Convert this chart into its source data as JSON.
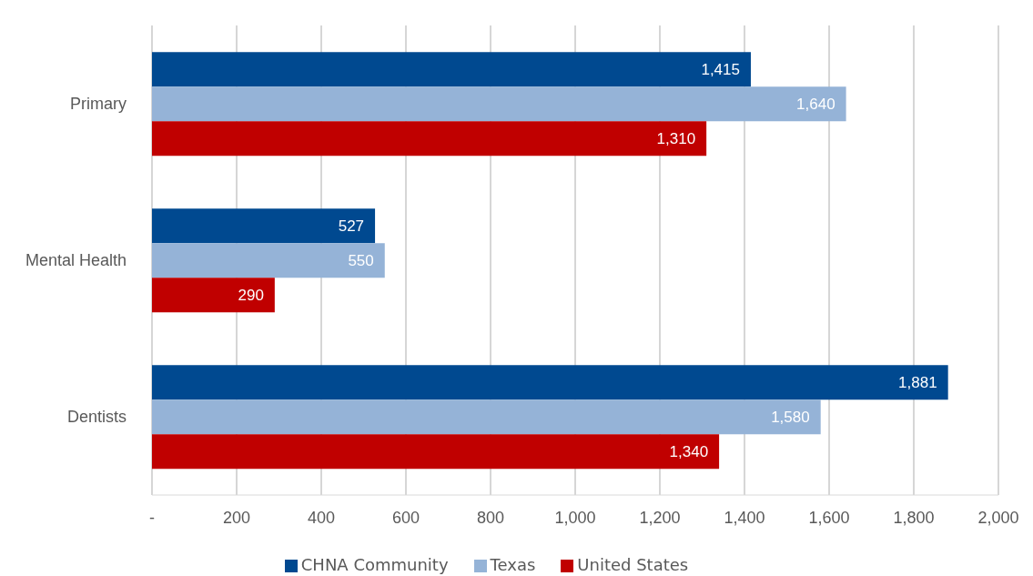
{
  "chart_data": {
    "type": "bar",
    "orientation": "horizontal",
    "categories": [
      "Primary",
      "Mental Health",
      "Dentists"
    ],
    "series": [
      {
        "name": "CHNA Community",
        "color": "#004990",
        "values": [
          1415,
          527,
          1881
        ],
        "value_labels": [
          "1,415",
          "527",
          "1,881"
        ]
      },
      {
        "name": "Texas",
        "color": "#95b3d7",
        "values": [
          1640,
          550,
          1580
        ],
        "value_labels": [
          "1,640",
          "550",
          "1,580"
        ]
      },
      {
        "name": "United States",
        "color": "#c00000",
        "values": [
          1310,
          290,
          1340
        ],
        "value_labels": [
          "1,310",
          "290",
          "1,340"
        ]
      }
    ],
    "xlim": [
      0,
      2000
    ],
    "xticks": [
      {
        "value": 0,
        "label": "-"
      },
      200,
      400,
      600,
      800,
      {
        "value": 1000,
        "label": "1,000"
      },
      {
        "value": 1200,
        "label": "1,200"
      },
      {
        "value": 1400,
        "label": "1,400"
      },
      {
        "value": 1600,
        "label": "1,600"
      },
      {
        "value": 1800,
        "label": "1,800"
      },
      {
        "value": 2000,
        "label": "2,000"
      }
    ],
    "grid": "x",
    "legend": "bottom"
  }
}
